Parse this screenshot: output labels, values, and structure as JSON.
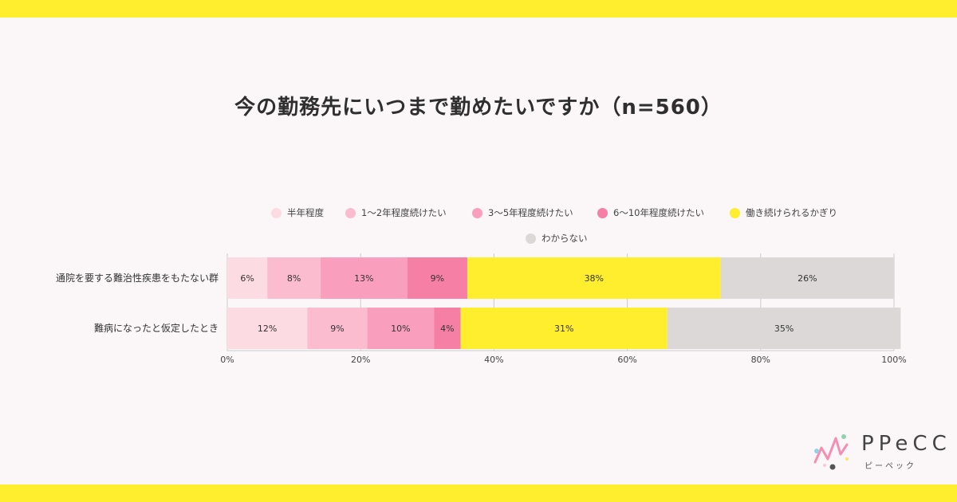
{
  "colors": {
    "background": "#fbf6f7",
    "band": "#ffee2e",
    "series": [
      "#fcdbe3",
      "#fbbcd0",
      "#f99fbd",
      "#f67fa6",
      "#ffee2e",
      "#dcd8d8"
    ],
    "grid": "#cccccc"
  },
  "chart_data": {
    "type": "bar",
    "orientation": "horizontal",
    "stacked": true,
    "title": "今の勤務先にいつまで勤めたいですか（n=560）",
    "categories": [
      "通院を要する難治性疾患をもたない群",
      "難病になったと仮定したとき"
    ],
    "series": [
      {
        "name": "半年程度",
        "values": [
          6,
          12
        ],
        "labels": [
          "6%",
          "12%"
        ]
      },
      {
        "name": "1～2年程度続けたい",
        "values": [
          8,
          9
        ],
        "labels": [
          "8%",
          "9%"
        ]
      },
      {
        "name": "3～5年程度続けたい",
        "values": [
          13,
          10
        ],
        "labels": [
          "13%",
          "10%"
        ]
      },
      {
        "name": "6～10年程度続けたい",
        "values": [
          9,
          4
        ],
        "labels": [
          "9%",
          "4%"
        ]
      },
      {
        "name": "働き続けられるかぎり",
        "values": [
          38,
          31
        ],
        "labels": [
          "38%",
          "31%"
        ]
      },
      {
        "name": "わからない",
        "values": [
          26,
          35
        ],
        "labels": [
          "26%",
          "35%"
        ]
      }
    ],
    "xlim": [
      0,
      100
    ],
    "xticks": [
      0,
      20,
      40,
      60,
      80,
      100
    ],
    "xtick_labels": [
      "0%",
      "20%",
      "40%",
      "60%",
      "80%",
      "100%"
    ],
    "legend_position": "top",
    "grid": true
  },
  "logo": {
    "name": "PPeCC",
    "reading": "ピーペック"
  }
}
